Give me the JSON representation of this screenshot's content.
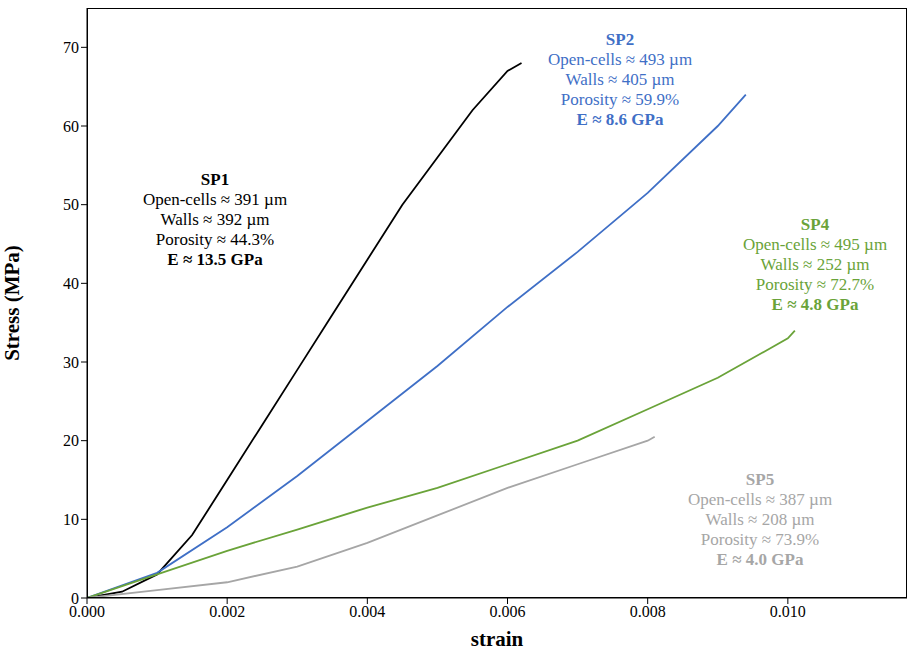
{
  "chart_data": {
    "type": "line",
    "xlabel": "strain",
    "ylabel": "Stress (MPa)",
    "xlim": [
      0,
      0.0117
    ],
    "ylim": [
      0,
      75
    ],
    "xticks": [
      {
        "value": 0,
        "label": "0.000"
      },
      {
        "value": 0.002,
        "label": "0.002"
      },
      {
        "value": 0.004,
        "label": "0.004"
      },
      {
        "value": 0.006,
        "label": "0.006"
      },
      {
        "value": 0.008,
        "label": "0.008"
      },
      {
        "value": 0.01,
        "label": "0.010"
      }
    ],
    "yticks": [
      0,
      10,
      20,
      30,
      40,
      50,
      60,
      70
    ],
    "grid": false,
    "series": [
      {
        "name": "SP1",
        "color": "#000000",
        "annotation": [
          "Open-cells ≈ 391 µm",
          "Walls ≈ 392 µm",
          "Porosity ≈ 44.3%",
          "E ≈ 13.5 GPa"
        ],
        "x": [
          0,
          0.0005,
          0.001,
          0.0015,
          0.002,
          0.0025,
          0.003,
          0.0035,
          0.004,
          0.0045,
          0.005,
          0.0055,
          0.006,
          0.0062
        ],
        "values": [
          0,
          0.8,
          3,
          8,
          15,
          22,
          29,
          36,
          43,
          50,
          56,
          62,
          67,
          68
        ]
      },
      {
        "name": "SP2",
        "color": "#3f6fc6",
        "annotation": [
          "Open-cells ≈ 493 µm",
          "Walls ≈ 405 µm",
          "Porosity ≈ 59.9%",
          "E ≈ 8.6 GPa"
        ],
        "x": [
          0,
          0.001,
          0.002,
          0.003,
          0.004,
          0.005,
          0.006,
          0.007,
          0.008,
          0.009,
          0.0094
        ],
        "values": [
          0,
          3.2,
          9,
          15.5,
          22.5,
          29.5,
          37,
          44,
          51.5,
          60,
          64
        ]
      },
      {
        "name": "SP4",
        "color": "#6aa339",
        "annotation": [
          "Open-cells ≈ 495 µm",
          "Walls ≈ 252 µm",
          "Porosity ≈ 72.7%",
          "E ≈ 4.8 GPa"
        ],
        "x": [
          0,
          0.0005,
          0.001,
          0.002,
          0.003,
          0.004,
          0.005,
          0.006,
          0.007,
          0.008,
          0.009,
          0.01,
          0.0101
        ],
        "values": [
          0,
          1.5,
          3,
          6,
          8.7,
          11.5,
          14,
          17,
          20,
          24,
          28,
          33,
          34
        ]
      },
      {
        "name": "SP5",
        "color": "#a6a6a6",
        "annotation": [
          "Open-cells ≈ 387 µm",
          "Walls ≈ 208 µm",
          "Porosity ≈ 73.9%",
          "E ≈ 4.0 GPa"
        ],
        "x": [
          0,
          0.001,
          0.002,
          0.003,
          0.004,
          0.005,
          0.006,
          0.007,
          0.008,
          0.0081
        ],
        "values": [
          0,
          1,
          2,
          4,
          7,
          10.5,
          14,
          17,
          20,
          20.5
        ]
      }
    ]
  }
}
